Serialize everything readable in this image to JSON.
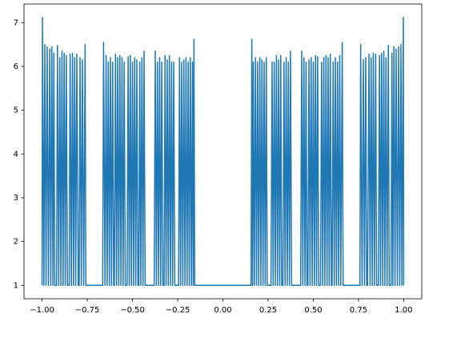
{
  "chart_data": {
    "type": "line",
    "color": "#1f77b4",
    "x": [
      -1.0,
      -0.998,
      -0.99,
      -0.985,
      -0.978,
      -0.972,
      -0.965,
      -0.958,
      -0.952,
      -0.946,
      -0.94,
      -0.935,
      -0.93,
      -0.92,
      -0.915,
      -0.908,
      -0.902,
      -0.896,
      -0.89,
      -0.884,
      -0.878,
      -0.872,
      -0.866,
      -0.86,
      -0.85,
      -0.845,
      -0.838,
      -0.832,
      -0.826,
      -0.82,
      -0.814,
      -0.808,
      -0.8,
      -0.795,
      -0.79,
      -0.783,
      -0.777,
      -0.77,
      -0.762,
      -0.758,
      -0.665,
      -0.66,
      -0.652,
      -0.646,
      -0.64,
      -0.634,
      -0.628,
      -0.622,
      -0.616,
      -0.61,
      -0.604,
      -0.6,
      -0.594,
      -0.588,
      -0.582,
      -0.576,
      -0.57,
      -0.564,
      -0.558,
      -0.552,
      -0.546,
      -0.54,
      -0.53,
      -0.524,
      -0.518,
      -0.512,
      -0.506,
      -0.5,
      -0.494,
      -0.488,
      -0.482,
      -0.476,
      -0.47,
      -0.465,
      -0.46,
      -0.454,
      -0.448,
      -0.442,
      -0.436,
      -0.43,
      -0.38,
      -0.374,
      -0.368,
      -0.362,
      -0.356,
      -0.35,
      -0.344,
      -0.338,
      -0.332,
      -0.325,
      -0.32,
      -0.314,
      -0.308,
      -0.302,
      -0.296,
      -0.29,
      -0.284,
      -0.278,
      -0.272,
      -0.266,
      -0.245,
      -0.24,
      -0.234,
      -0.228,
      -0.222,
      -0.216,
      -0.21,
      -0.204,
      -0.198,
      -0.192,
      -0.186,
      -0.18,
      -0.174,
      -0.168,
      -0.164,
      -0.16,
      -0.156,
      0.156,
      0.16,
      0.164,
      0.168,
      0.174,
      0.18,
      0.186,
      0.192,
      0.198,
      0.204,
      0.21,
      0.216,
      0.222,
      0.228,
      0.234,
      0.24,
      0.245,
      0.266,
      0.272,
      0.278,
      0.284,
      0.29,
      0.296,
      0.302,
      0.308,
      0.314,
      0.32,
      0.325,
      0.332,
      0.338,
      0.344,
      0.35,
      0.356,
      0.362,
      0.368,
      0.374,
      0.38,
      0.43,
      0.436,
      0.442,
      0.448,
      0.454,
      0.46,
      0.465,
      0.47,
      0.476,
      0.482,
      0.488,
      0.494,
      0.5,
      0.506,
      0.512,
      0.518,
      0.524,
      0.53,
      0.54,
      0.546,
      0.552,
      0.558,
      0.564,
      0.57,
      0.576,
      0.582,
      0.588,
      0.594,
      0.6,
      0.604,
      0.61,
      0.616,
      0.622,
      0.628,
      0.634,
      0.64,
      0.646,
      0.652,
      0.66,
      0.665,
      0.758,
      0.762,
      0.77,
      0.777,
      0.783,
      0.79,
      0.795,
      0.8,
      0.808,
      0.814,
      0.82,
      0.826,
      0.832,
      0.838,
      0.845,
      0.85,
      0.86,
      0.866,
      0.872,
      0.878,
      0.884,
      0.89,
      0.896,
      0.902,
      0.908,
      0.915,
      0.92,
      0.93,
      0.935,
      0.94,
      0.946,
      0.952,
      0.958,
      0.965,
      0.972,
      0.978,
      0.985,
      0.99,
      0.998,
      1.0
    ],
    "values": [
      1,
      7.12,
      1,
      6.5,
      1,
      6.45,
      1,
      6.4,
      1,
      6.45,
      1,
      6.3,
      1,
      1,
      6.48,
      1,
      6.2,
      1,
      6.35,
      1,
      6.3,
      1,
      6.25,
      1,
      1,
      6.28,
      1,
      6.3,
      1,
      6.2,
      1,
      6.28,
      1,
      1,
      6.2,
      1,
      6.15,
      1,
      6.5,
      1,
      1,
      6.55,
      1,
      6.25,
      1,
      6.1,
      1,
      6.2,
      1,
      6.1,
      1,
      1,
      6.28,
      1,
      6.2,
      1,
      6.25,
      1,
      6.2,
      1,
      6.1,
      1,
      1,
      6.22,
      1,
      6.25,
      1,
      6.1,
      1,
      6.2,
      1,
      6.15,
      1,
      1,
      6.1,
      1,
      6.2,
      1,
      6.35,
      1,
      1,
      6.35,
      1,
      6.1,
      1,
      6.2,
      1,
      6.1,
      1,
      1,
      6.25,
      1,
      6.15,
      1,
      6.25,
      1,
      6.1,
      1,
      6.1,
      1,
      1,
      6.2,
      1,
      6.1,
      1,
      6.15,
      1,
      6.2,
      1,
      6.1,
      1,
      6.2,
      1,
      6.1,
      1,
      6.62,
      1,
      1,
      6.62,
      1,
      6.1,
      1,
      6.2,
      1,
      6.1,
      1,
      6.2,
      1,
      6.15,
      1,
      6.1,
      1,
      6.2,
      1,
      1,
      6.1,
      1,
      6.1,
      1,
      6.25,
      1,
      6.15,
      1,
      6.25,
      1,
      1,
      6.1,
      1,
      6.2,
      1,
      6.1,
      1,
      6.35,
      1,
      1,
      6.35,
      1,
      6.2,
      1,
      6.1,
      1,
      1,
      6.15,
      1,
      6.2,
      1,
      6.1,
      1,
      6.25,
      1,
      6.22,
      1,
      1,
      6.1,
      1,
      6.2,
      1,
      6.25,
      1,
      6.2,
      1,
      6.28,
      1,
      1,
      6.1,
      1,
      6.2,
      1,
      6.1,
      1,
      6.25,
      1,
      6.55,
      1,
      1,
      6.5,
      1,
      6.15,
      1,
      6.2,
      1,
      1,
      6.28,
      1,
      6.2,
      1,
      6.3,
      1,
      6.28,
      1,
      1,
      6.25,
      1,
      6.3,
      1,
      6.35,
      1,
      6.2,
      1,
      6.48,
      1,
      1,
      6.3,
      1,
      6.45,
      1,
      6.4,
      1,
      6.45,
      1,
      6.5,
      1,
      7.12,
      1
    ],
    "xlim": [
      -1.1,
      1.1
    ],
    "ylim": [
      0.694,
      7.426
    ],
    "xticks": [
      {
        "value": -1,
        "label": "−1.00"
      },
      {
        "value": -0.75,
        "label": "−0.75"
      },
      {
        "value": -0.5,
        "label": "−0.50"
      },
      {
        "value": -0.25,
        "label": "−0.25"
      },
      {
        "value": 0,
        "label": "0.00"
      },
      {
        "value": 0.25,
        "label": "0.25"
      },
      {
        "value": 0.5,
        "label": "0.50"
      },
      {
        "value": 0.75,
        "label": "0.75"
      },
      {
        "value": 1,
        "label": "1.00"
      }
    ],
    "yticks": [
      1,
      2,
      3,
      4,
      5,
      6,
      7
    ],
    "grid": false
  }
}
